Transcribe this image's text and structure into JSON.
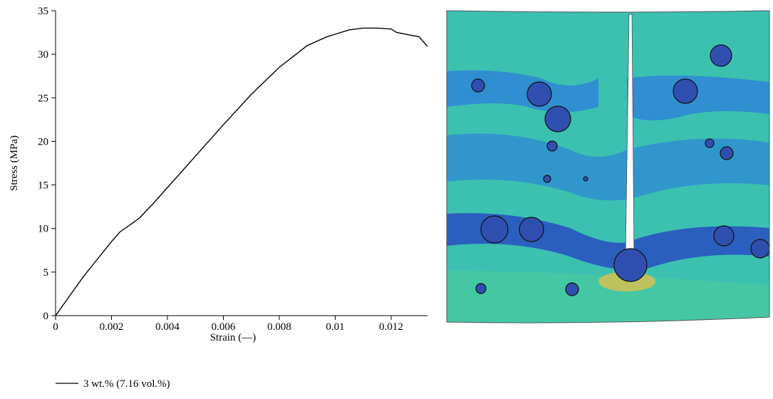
{
  "chart_data": {
    "type": "line",
    "x_label": "Strain (—)",
    "y_label": "Stress (MPa)",
    "xlim": [
      0,
      0.0133
    ],
    "ylim": [
      0,
      35
    ],
    "xticks": [
      0,
      0.002,
      0.004,
      0.006,
      0.008,
      0.01,
      0.012
    ],
    "yticks": [
      0,
      5,
      10,
      15,
      20,
      25,
      30,
      35
    ],
    "legend": "bottom-left",
    "series": [
      {
        "name": "3 wt.% (7.16 vol.%)",
        "color": "#000000",
        "x": [
          0,
          0.001,
          0.002,
          0.0023,
          0.0027,
          0.003,
          0.0035,
          0.004,
          0.005,
          0.006,
          0.007,
          0.008,
          0.009,
          0.0097,
          0.01,
          0.0105,
          0.011,
          0.0115,
          0.012,
          0.0122,
          0.013,
          0.0133
        ],
        "values": [
          0,
          4.5,
          8.5,
          9.6,
          10.5,
          11.2,
          12.9,
          14.7,
          18.3,
          21.9,
          25.4,
          28.5,
          31,
          32,
          32.3,
          32.8,
          33,
          33,
          32.9,
          32.5,
          32,
          30.9
        ]
      }
    ]
  }
}
